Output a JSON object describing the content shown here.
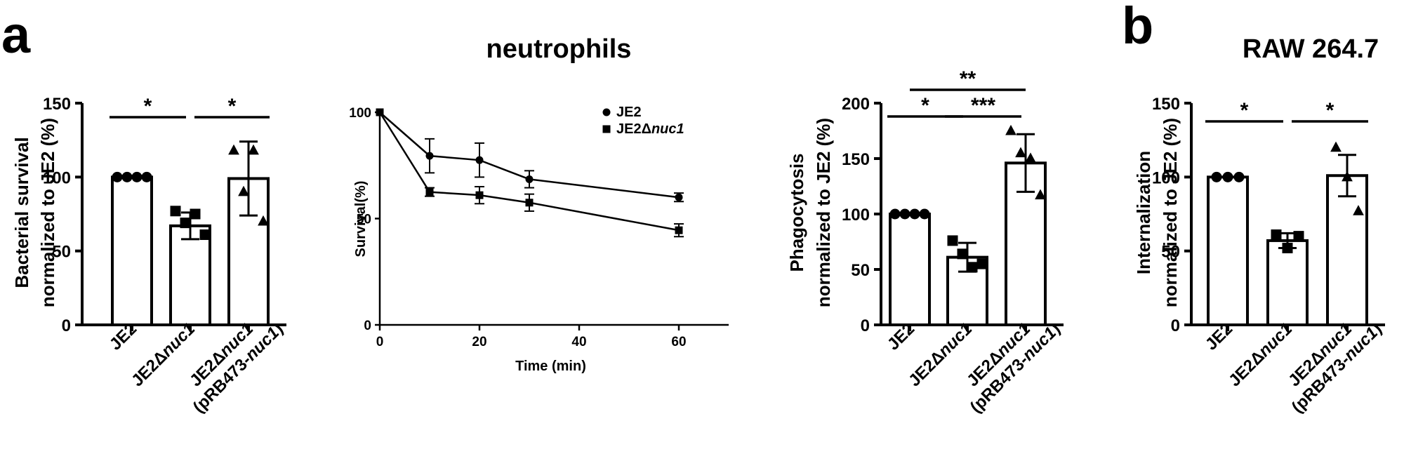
{
  "panel_labels": [
    "a",
    "b"
  ],
  "titles": {
    "neutrophils": "neutrophils",
    "raw": "RAW 264.7"
  },
  "chart_data": [
    {
      "type": "bar",
      "ylabel_lines": [
        "Bacterial survival",
        "normalized to JE2 (%)"
      ],
      "categories": [
        {
          "lines": [
            [
              "JE2"
            ]
          ]
        },
        {
          "lines": [
            [
              "JE2Δ",
              "nuc1"
            ]
          ]
        },
        {
          "lines": [
            [
              "JE2Δ",
              "nuc1"
            ],
            [
              "(pRB473-",
              "nuc1",
              ")"
            ]
          ]
        }
      ],
      "values": [
        100,
        67,
        99
      ],
      "errors": [
        0,
        9,
        25
      ],
      "points": [
        [
          100,
          100,
          100,
          100
        ],
        [
          77,
          69,
          75,
          61
        ],
        [
          118,
          90,
          118,
          70
        ]
      ],
      "markers": [
        "circle",
        "square",
        "triangle"
      ],
      "ylim": [
        0,
        150
      ],
      "yticks": [
        0,
        50,
        100,
        150
      ],
      "significance": [
        {
          "from": 0,
          "to": 1,
          "label": "*"
        },
        {
          "from": 1,
          "to": 2,
          "label": "*"
        }
      ]
    },
    {
      "type": "line",
      "ylabel": "Survival(%)",
      "xlabel": "Time (min)",
      "xlim": [
        0,
        70
      ],
      "ylim": [
        0,
        100
      ],
      "xticks": [
        0,
        20,
        40,
        60
      ],
      "yticks": [
        0,
        50,
        100
      ],
      "series": [
        {
          "name": "JE2",
          "marker": "circle",
          "x": [
            0,
            10,
            20,
            30,
            60
          ],
          "y": [
            100,
            79.5,
            77.5,
            68.5,
            60
          ],
          "err": [
            0,
            8,
            8,
            4,
            2
          ]
        },
        {
          "name": "JE2Δnuc1",
          "name_parts": [
            "JE2Δ",
            "nuc1"
          ],
          "marker": "square",
          "x": [
            0,
            10,
            20,
            30,
            60
          ],
          "y": [
            100,
            62.5,
            61,
            57.5,
            44.5
          ],
          "err": [
            0,
            2,
            4,
            4,
            3
          ]
        }
      ]
    },
    {
      "type": "bar",
      "ylabel_lines": [
        "Phagocytosis",
        "normalized to JE2 (%)"
      ],
      "categories": [
        {
          "lines": [
            [
              "JE2"
            ]
          ]
        },
        {
          "lines": [
            [
              "JE2Δ",
              "nuc1"
            ]
          ]
        },
        {
          "lines": [
            [
              "JE2Δ",
              "nuc1"
            ],
            [
              "(pRB473-",
              "nuc1",
              ")"
            ]
          ]
        }
      ],
      "values": [
        100,
        61,
        146
      ],
      "errors": [
        0,
        13,
        26
      ],
      "points": [
        [
          100,
          100,
          100,
          100
        ],
        [
          76,
          64,
          52,
          55
        ],
        [
          175,
          155,
          150,
          117
        ]
      ],
      "markers": [
        "circle",
        "square",
        "triangle"
      ],
      "ylim": [
        0,
        200
      ],
      "yticks": [
        0,
        50,
        100,
        150,
        200
      ],
      "significance": [
        {
          "from": 0,
          "to": 2,
          "label": "**"
        },
        {
          "from": 0,
          "to": 1,
          "label": "*"
        },
        {
          "from": 1,
          "to": 2,
          "label": "***"
        }
      ]
    },
    {
      "type": "bar",
      "ylabel_lines": [
        "Internalization",
        "normalized to JE2 (%)"
      ],
      "categories": [
        {
          "lines": [
            [
              "JE2"
            ]
          ]
        },
        {
          "lines": [
            [
              "JE2Δ",
              "nuc1"
            ]
          ]
        },
        {
          "lines": [
            [
              "JE2Δ",
              "nuc1"
            ],
            [
              "(pRB473-",
              "nuc1",
              ")"
            ]
          ]
        }
      ],
      "values": [
        100,
        57,
        101
      ],
      "errors": [
        0,
        5,
        14
      ],
      "points": [
        [
          100,
          100,
          100
        ],
        [
          61,
          52,
          60
        ],
        [
          120,
          100,
          77
        ]
      ],
      "markers": [
        "circle",
        "square",
        "triangle"
      ],
      "ylim": [
        0,
        150
      ],
      "yticks": [
        0,
        50,
        100,
        150
      ],
      "significance": [
        {
          "from": 0,
          "to": 1,
          "label": "*"
        },
        {
          "from": 1,
          "to": 2,
          "label": "*"
        }
      ]
    }
  ]
}
